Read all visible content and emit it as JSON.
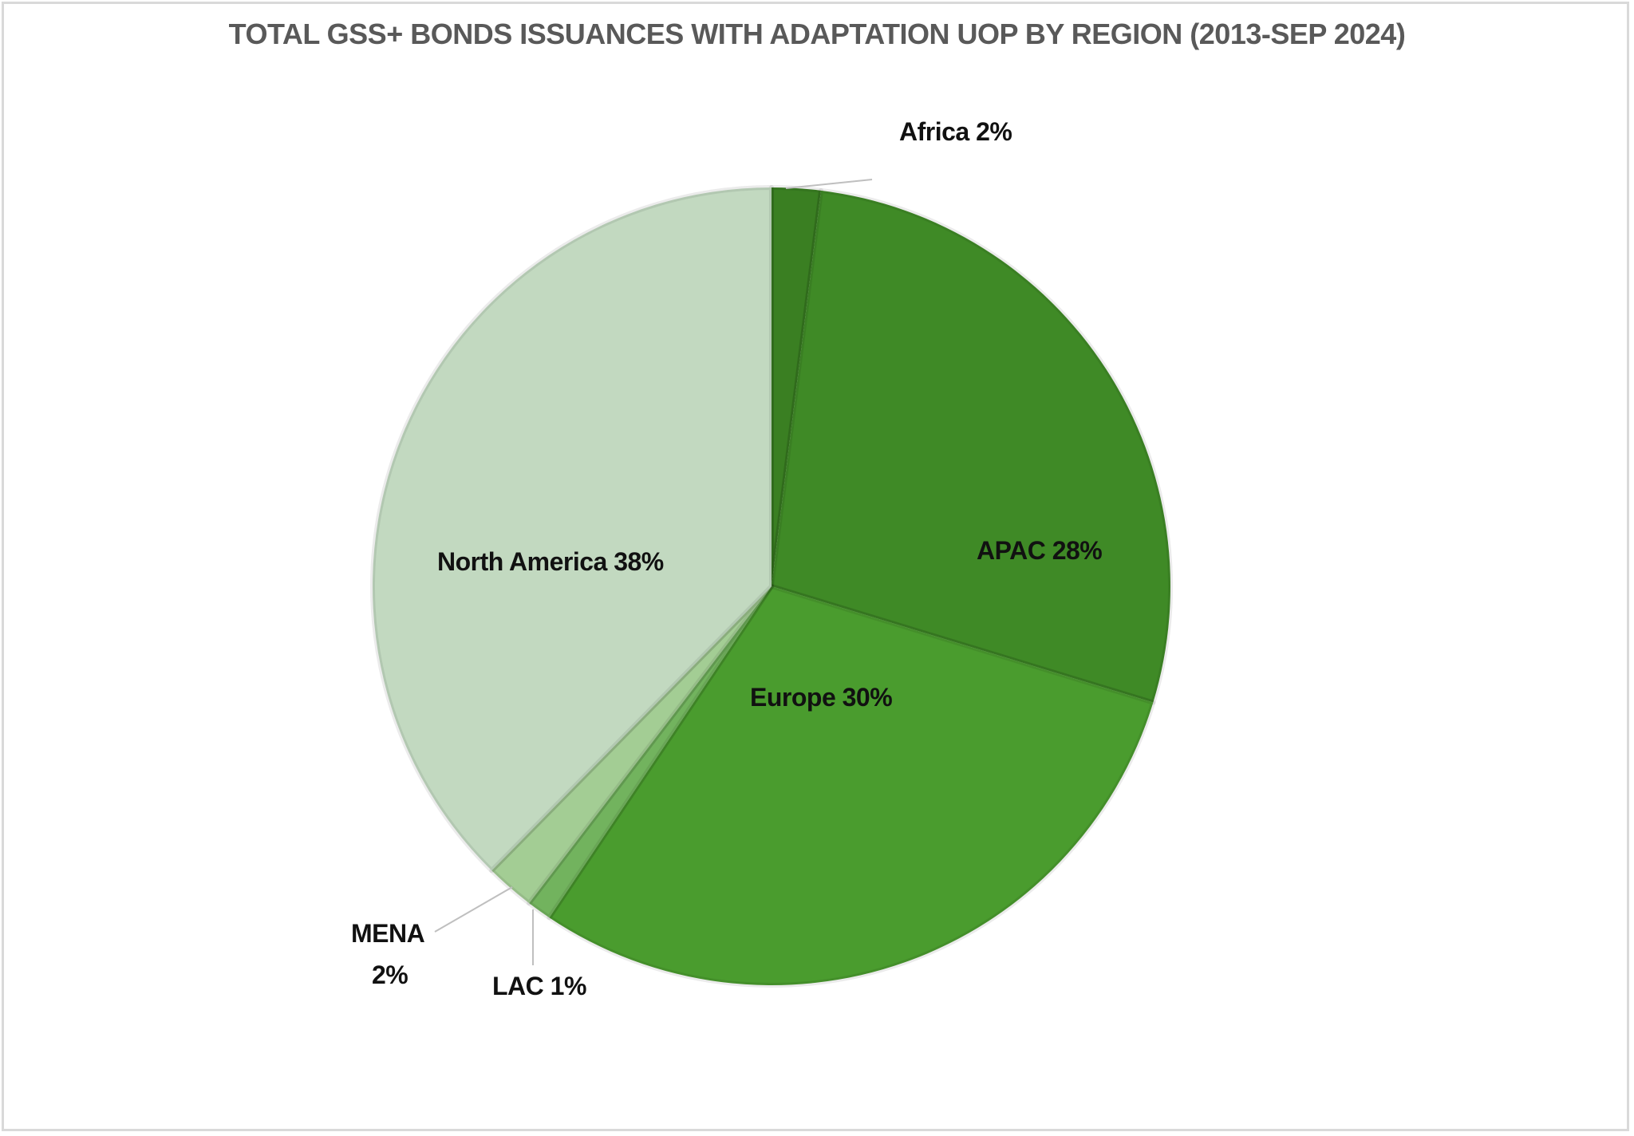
{
  "chart_data": {
    "type": "pie",
    "title": "TOTAL GSS+ BONDS ISSUANCES WITH ADAPTATION UOP BY REGION (2013-SEP 2024)",
    "categories": [
      "Africa",
      "APAC",
      "Europe",
      "LAC",
      "MENA",
      "North America"
    ],
    "values": [
      2,
      28,
      30,
      1,
      2,
      38
    ],
    "unit": "%",
    "colors": [
      "#3a7f22",
      "#3f8a26",
      "#4a9c2e",
      "#72b35e",
      "#a3cd94",
      "#c2d9c0"
    ],
    "start_angle": "12 o'clock, clockwise",
    "legend": "none (data labels on slices)",
    "labels": [
      {
        "name": "Africa",
        "text": "Africa 2%",
        "leader_line": true
      },
      {
        "name": "APAC",
        "text": "APAC 28%",
        "leader_line": false
      },
      {
        "name": "Europe",
        "text": "Europe 30%",
        "leader_line": false
      },
      {
        "name": "LAC",
        "text": "LAC 1%",
        "leader_line": true
      },
      {
        "name": "MENA",
        "text_line1": "MENA",
        "text_line2": "2%",
        "leader_line": true
      },
      {
        "name": "North America",
        "text": "North America 38%",
        "leader_line": false
      }
    ]
  }
}
